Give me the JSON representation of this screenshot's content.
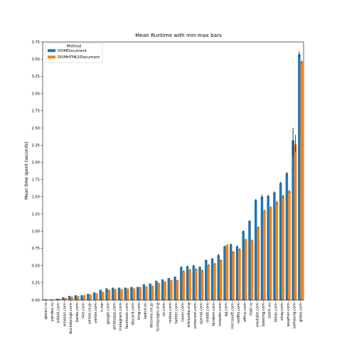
{
  "chart_data": {
    "type": "bar",
    "title": "Mean Runtime with min-max bars",
    "xlabel": "",
    "ylabel": "Mean time spent (seconds)",
    "ylim": [
      0,
      3.75
    ],
    "yticks": [
      "0.00",
      "0.25",
      "0.50",
      "0.75",
      "1.00",
      "1.25",
      "1.50",
      "1.75",
      "2.00",
      "2.25",
      "2.50",
      "2.75",
      "3.00",
      "3.25",
      "3.50",
      "3.75"
    ],
    "grid": false,
    "legend": {
      "title": "Method",
      "placement": "upper-left"
    },
    "categories": [
      "qbeen.ru",
      "yandex.ru",
      "bilibili.com",
      "amazon.com",
      "duckduckgo.com",
      "baidu.com",
      "live.com",
      "yahoo.co.jp",
      "yahoo.com",
      "t.me",
      "google.com",
      "whatsapp.com",
      "instagram.com",
      "facebook.com",
      "discord.com",
      "bing.com",
      "twitch.tv",
      "docomo.ne.jp",
      "turbopages.org",
      "vk.com",
      "roblox.com",
      "twitter.com",
      "naver.com",
      "wikipedia.org",
      "pinterest.com",
      "openai.com",
      "reddit.com",
      "fandom.com",
      "linkedin.com",
      "qq.com",
      "microsoft.com",
      "netflix.com",
      "office.com",
      "mail.ru",
      "youtube.com",
      "booking.com",
      "zoom.us",
      "tiktok.com",
      "ebay.com",
      "weather.com",
      "samsung.com",
      "globo.com"
    ],
    "series": [
      {
        "name": "DOMDocument",
        "color": "#1f77b4",
        "values": [
          0.01,
          0.01,
          0.02,
          0.04,
          0.06,
          0.07,
          0.07,
          0.09,
          0.11,
          0.15,
          0.17,
          0.18,
          0.18,
          0.18,
          0.19,
          0.19,
          0.23,
          0.24,
          0.28,
          0.3,
          0.32,
          0.34,
          0.48,
          0.49,
          0.5,
          0.48,
          0.58,
          0.6,
          0.65,
          0.78,
          0.81,
          0.78,
          1.0,
          1.15,
          1.45,
          1.5,
          1.51,
          1.56,
          1.7,
          1.84,
          2.32,
          3.57
        ],
        "min": [
          0.01,
          0.01,
          0.02,
          0.04,
          0.06,
          0.07,
          0.07,
          0.09,
          0.11,
          0.15,
          0.17,
          0.18,
          0.18,
          0.18,
          0.19,
          0.19,
          0.23,
          0.24,
          0.28,
          0.3,
          0.32,
          0.34,
          0.47,
          0.48,
          0.49,
          0.47,
          0.57,
          0.59,
          0.63,
          0.77,
          0.8,
          0.77,
          0.99,
          1.14,
          1.43,
          1.47,
          1.49,
          1.54,
          1.68,
          1.82,
          2.08,
          3.53
        ],
        "max": [
          0.01,
          0.01,
          0.02,
          0.04,
          0.06,
          0.07,
          0.07,
          0.09,
          0.11,
          0.15,
          0.17,
          0.18,
          0.18,
          0.18,
          0.19,
          0.19,
          0.23,
          0.24,
          0.28,
          0.3,
          0.32,
          0.34,
          0.49,
          0.5,
          0.51,
          0.49,
          0.59,
          0.61,
          0.67,
          0.79,
          0.82,
          0.79,
          1.01,
          1.16,
          1.47,
          1.53,
          1.53,
          1.58,
          1.72,
          1.86,
          2.5,
          3.61
        ]
      },
      {
        "name": "DOMHTML5Document",
        "color": "#ff7f0e",
        "values": [
          0.01,
          0.01,
          0.02,
          0.03,
          0.05,
          0.06,
          0.07,
          0.08,
          0.1,
          0.12,
          0.15,
          0.16,
          0.16,
          0.17,
          0.17,
          0.19,
          0.2,
          0.21,
          0.25,
          0.27,
          0.29,
          0.29,
          0.42,
          0.44,
          0.45,
          0.43,
          0.51,
          0.53,
          0.58,
          0.8,
          0.7,
          0.74,
          0.88,
          0.87,
          1.06,
          1.3,
          1.35,
          1.42,
          1.51,
          1.58,
          2.26,
          3.46
        ],
        "min": [
          0.01,
          0.01,
          0.02,
          0.03,
          0.05,
          0.06,
          0.07,
          0.08,
          0.1,
          0.12,
          0.15,
          0.16,
          0.16,
          0.17,
          0.17,
          0.19,
          0.2,
          0.21,
          0.25,
          0.27,
          0.29,
          0.29,
          0.41,
          0.43,
          0.44,
          0.42,
          0.5,
          0.52,
          0.57,
          0.79,
          0.69,
          0.73,
          0.87,
          0.86,
          1.05,
          1.29,
          1.34,
          1.4,
          1.49,
          1.56,
          2.15,
          3.44
        ],
        "max": [
          0.01,
          0.01,
          0.02,
          0.03,
          0.05,
          0.06,
          0.07,
          0.08,
          0.1,
          0.12,
          0.15,
          0.16,
          0.16,
          0.17,
          0.17,
          0.19,
          0.2,
          0.21,
          0.25,
          0.27,
          0.29,
          0.29,
          0.43,
          0.45,
          0.46,
          0.44,
          0.52,
          0.54,
          0.59,
          0.81,
          0.71,
          0.75,
          0.89,
          0.88,
          1.07,
          1.31,
          1.36,
          1.44,
          1.53,
          1.6,
          2.4,
          3.48
        ]
      }
    ]
  }
}
